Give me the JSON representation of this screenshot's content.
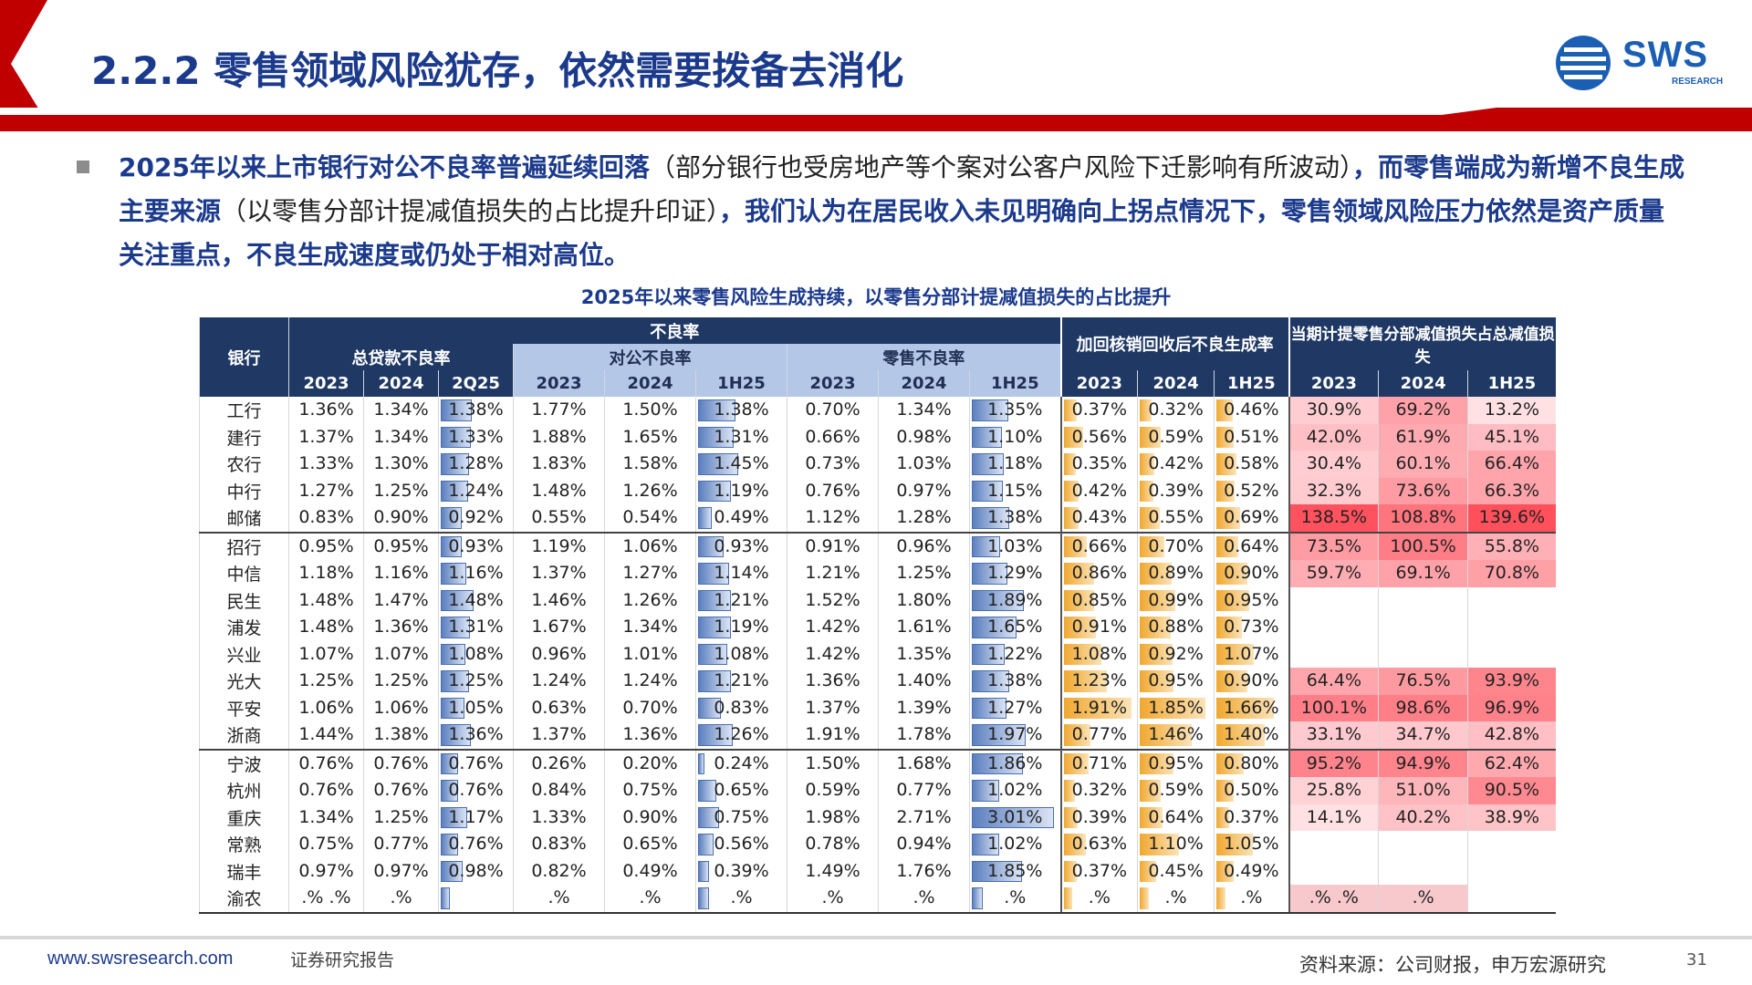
{
  "header": {
    "title": "2.2.2 零售领域风险犹存，依然需要拨备去消化",
    "logo_text": "SWS",
    "logo_sub": "RESEARCH"
  },
  "bullet": {
    "bold_1": "2025年以来上市银行对公不良率普遍延续回落",
    "normal_1": "（部分银行也受房地产等个案对公客户风险下迁影响有所波动）",
    "bold_2": "，而零售端成为新增不良生成主要来源",
    "normal_2": "（以零售分部计提减值损失的占比提升印证）",
    "bold_3": "，我们认为在居民收入未见明确向上拐点情况下，零售领域风险压力依然是资产质量关注重点，不良生成速度或仍处于相对高位。"
  },
  "table": {
    "caption": "2025年以来零售风险生成持续，以零售分部计提减值损失的占比提升",
    "headers": {
      "bank": "银行",
      "npl": "不良率",
      "total": "总贷款不良率",
      "corporate": "对公不良率",
      "retail": "零售不良率",
      "generation": "加回核销回收后不良生成率",
      "share": "当期计提零售分部减值损失占总减值损失"
    },
    "periods": {
      "total": [
        "2023",
        "2024",
        "2Q25"
      ],
      "corporate": [
        "2023",
        "2024",
        "1H25"
      ],
      "retail": [
        "2023",
        "2024",
        "1H25"
      ],
      "generation": [
        "2023",
        "2024",
        "1H25"
      ],
      "share": [
        "2023",
        "2024",
        "1H25"
      ]
    },
    "rows": [
      {
        "bank": "工行",
        "total": [
          "1.36%",
          "1.34%",
          "1.38%"
        ],
        "corp": [
          "1.77%",
          "1.50%",
          "1.38%"
        ],
        "retail": [
          "0.70%",
          "1.34%",
          "1.35%"
        ],
        "gen": [
          "0.37%",
          "0.32%",
          "0.46%"
        ],
        "share": [
          "30.9%",
          "69.2%",
          "13.2%"
        ]
      },
      {
        "bank": "建行",
        "total": [
          "1.37%",
          "1.34%",
          "1.33%"
        ],
        "corp": [
          "1.88%",
          "1.65%",
          "1.31%"
        ],
        "retail": [
          "0.66%",
          "0.98%",
          "1.10%"
        ],
        "gen": [
          "0.56%",
          "0.59%",
          "0.51%"
        ],
        "share": [
          "42.0%",
          "61.9%",
          "45.1%"
        ]
      },
      {
        "bank": "农行",
        "total": [
          "1.33%",
          "1.30%",
          "1.28%"
        ],
        "corp": [
          "1.83%",
          "1.58%",
          "1.45%"
        ],
        "retail": [
          "0.73%",
          "1.03%",
          "1.18%"
        ],
        "gen": [
          "0.35%",
          "0.42%",
          "0.58%"
        ],
        "share": [
          "30.4%",
          "60.1%",
          "66.4%"
        ]
      },
      {
        "bank": "中行",
        "total": [
          "1.27%",
          "1.25%",
          "1.24%"
        ],
        "corp": [
          "1.48%",
          "1.26%",
          "1.19%"
        ],
        "retail": [
          "0.76%",
          "0.97%",
          "1.15%"
        ],
        "gen": [
          "0.42%",
          "0.39%",
          "0.52%"
        ],
        "share": [
          "32.3%",
          "73.6%",
          "66.3%"
        ]
      },
      {
        "bank": "邮储",
        "total": [
          "0.83%",
          "0.90%",
          "0.92%"
        ],
        "corp": [
          "0.55%",
          "0.54%",
          "0.49%"
        ],
        "retail": [
          "1.12%",
          "1.28%",
          "1.38%"
        ],
        "gen": [
          "0.43%",
          "0.55%",
          "0.69%"
        ],
        "share": [
          "138.5%",
          "108.8%",
          "139.6%"
        ]
      },
      {
        "bank": "招行",
        "total": [
          "0.95%",
          "0.95%",
          "0.93%"
        ],
        "corp": [
          "1.19%",
          "1.06%",
          "0.93%"
        ],
        "retail": [
          "0.91%",
          "0.96%",
          "1.03%"
        ],
        "gen": [
          "0.66%",
          "0.70%",
          "0.64%"
        ],
        "share": [
          "73.5%",
          "100.5%",
          "55.8%"
        ]
      },
      {
        "bank": "中信",
        "total": [
          "1.18%",
          "1.16%",
          "1.16%"
        ],
        "corp": [
          "1.37%",
          "1.27%",
          "1.14%"
        ],
        "retail": [
          "1.21%",
          "1.25%",
          "1.29%"
        ],
        "gen": [
          "0.86%",
          "0.89%",
          "0.90%"
        ],
        "share": [
          "59.7%",
          "69.1%",
          "70.8%"
        ]
      },
      {
        "bank": "民生",
        "total": [
          "1.48%",
          "1.47%",
          "1.48%"
        ],
        "corp": [
          "1.46%",
          "1.26%",
          "1.21%"
        ],
        "retail": [
          "1.52%",
          "1.80%",
          "1.89%"
        ],
        "gen": [
          "0.85%",
          "0.99%",
          "0.95%"
        ],
        "share": [
          "",
          "",
          ""
        ]
      },
      {
        "bank": "浦发",
        "total": [
          "1.48%",
          "1.36%",
          "1.31%"
        ],
        "corp": [
          "1.67%",
          "1.34%",
          "1.19%"
        ],
        "retail": [
          "1.42%",
          "1.61%",
          "1.65%"
        ],
        "gen": [
          "0.91%",
          "0.88%",
          "0.73%"
        ],
        "share": [
          "",
          "",
          ""
        ]
      },
      {
        "bank": "兴业",
        "total": [
          "1.07%",
          "1.07%",
          "1.08%"
        ],
        "corp": [
          "0.96%",
          "1.01%",
          "1.08%"
        ],
        "retail": [
          "1.42%",
          "1.35%",
          "1.22%"
        ],
        "gen": [
          "1.08%",
          "0.92%",
          "1.07%"
        ],
        "share": [
          "",
          "",
          ""
        ]
      },
      {
        "bank": "光大",
        "total": [
          "1.25%",
          "1.25%",
          "1.25%"
        ],
        "corp": [
          "1.24%",
          "1.24%",
          "1.21%"
        ],
        "retail": [
          "1.36%",
          "1.40%",
          "1.38%"
        ],
        "gen": [
          "1.23%",
          "0.95%",
          "0.90%"
        ],
        "share": [
          "64.4%",
          "76.5%",
          "93.9%"
        ]
      },
      {
        "bank": "平安",
        "total": [
          "1.06%",
          "1.06%",
          "1.05%"
        ],
        "corp": [
          "0.63%",
          "0.70%",
          "0.83%"
        ],
        "retail": [
          "1.37%",
          "1.39%",
          "1.27%"
        ],
        "gen": [
          "1.91%",
          "1.85%",
          "1.66%"
        ],
        "share": [
          "100.1%",
          "98.6%",
          "96.9%"
        ]
      },
      {
        "bank": "浙商",
        "total": [
          "1.44%",
          "1.38%",
          "1.36%"
        ],
        "corp": [
          "1.37%",
          "1.36%",
          "1.26%"
        ],
        "retail": [
          "1.91%",
          "1.78%",
          "1.97%"
        ],
        "gen": [
          "0.77%",
          "1.46%",
          "1.40%"
        ],
        "share": [
          "33.1%",
          "34.7%",
          "42.8%"
        ]
      },
      {
        "bank": "宁波",
        "total": [
          "0.76%",
          "0.76%",
          "0.76%"
        ],
        "corp": [
          "0.26%",
          "0.20%",
          "0.24%"
        ],
        "retail": [
          "1.50%",
          "1.68%",
          "1.86%"
        ],
        "gen": [
          "0.71%",
          "0.95%",
          "0.80%"
        ],
        "share": [
          "95.2%",
          "94.9%",
          "62.4%"
        ]
      },
      {
        "bank": "杭州",
        "total": [
          "0.76%",
          "0.76%",
          "0.76%"
        ],
        "corp": [
          "0.84%",
          "0.75%",
          "0.65%"
        ],
        "retail": [
          "0.59%",
          "0.77%",
          "1.02%"
        ],
        "gen": [
          "0.32%",
          "0.59%",
          "0.50%"
        ],
        "share": [
          "25.8%",
          "51.0%",
          "90.5%"
        ]
      },
      {
        "bank": "重庆",
        "total": [
          "1.34%",
          "1.25%",
          "1.17%"
        ],
        "corp": [
          "1.33%",
          "0.90%",
          "0.75%"
        ],
        "retail": [
          "1.98%",
          "2.71%",
          "3.01%"
        ],
        "gen": [
          "0.39%",
          "0.64%",
          "0.37%"
        ],
        "share": [
          "14.1%",
          "40.2%",
          "38.9%"
        ]
      },
      {
        "bank": "常熟",
        "total": [
          "0.75%",
          "0.77%",
          "0.76%"
        ],
        "corp": [
          "0.83%",
          "0.65%",
          "0.56%"
        ],
        "retail": [
          "0.78%",
          "0.94%",
          "1.02%"
        ],
        "gen": [
          "0.63%",
          "1.10%",
          "1.05%"
        ],
        "share": [
          "",
          "",
          ""
        ]
      },
      {
        "bank": "瑞丰",
        "total": [
          "0.97%",
          "0.97%",
          "0.98%"
        ],
        "corp": [
          "0.82%",
          "0.49%",
          "0.39%"
        ],
        "retail": [
          "1.49%",
          "1.76%",
          "1.85%"
        ],
        "gen": [
          "0.37%",
          "0.45%",
          "0.49%"
        ],
        "share": [
          "",
          "",
          ""
        ]
      },
      {
        "bank": "渝农",
        "total": [
          ".% .%",
          ".%",
          ""
        ],
        "corp": [
          ".%",
          ".%",
          ".%"
        ],
        "retail": [
          ".%",
          ".%",
          ".%"
        ],
        "gen": [
          ".%",
          ".%",
          ".%"
        ],
        "share": [
          ".% .%",
          ".%",
          ""
        ]
      }
    ]
  },
  "footer": {
    "url": "www.swsresearch.com",
    "report_type": "证券研究报告",
    "source": "资料来源：公司财报，申万宏源研究",
    "page": "31"
  },
  "colors": {
    "title_blue": "#1b3a8c",
    "header_navy": "#1f3864",
    "header_light": "#b4c7e7",
    "accent_red": "#c00000",
    "bar_blue": "#5b7fbf",
    "bar_orange": "#f0a830",
    "heat_red": "#e8505b"
  }
}
